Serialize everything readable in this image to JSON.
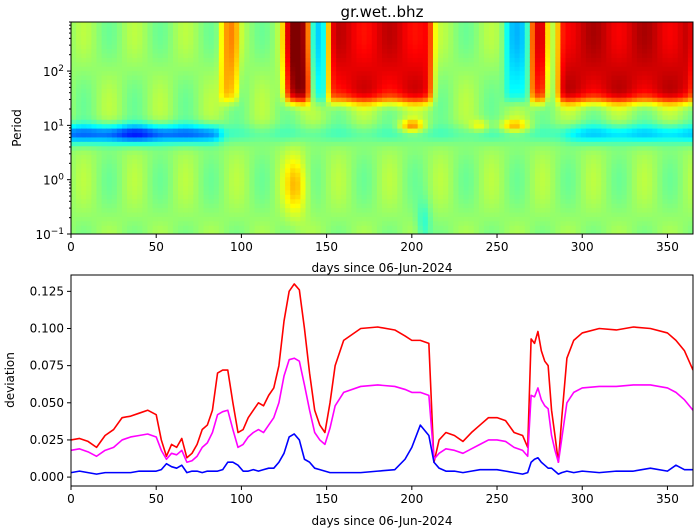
{
  "chart_data": [
    {
      "type": "heatmap",
      "title": "gr.wet..bhz",
      "xlabel": "days since 06-Jun-2024",
      "ylabel": "Period",
      "xlim": [
        0,
        365
      ],
      "ylim": [
        0.1,
        800
      ],
      "yscale": "log",
      "colormap": "jet",
      "xticks": [
        0,
        50,
        100,
        150,
        200,
        250,
        300,
        350
      ],
      "yticks": [
        {
          "value": 0.1,
          "label": "10",
          "exp": "−1"
        },
        {
          "value": 1,
          "label": "10",
          "exp": "0"
        },
        {
          "value": 10,
          "label": "10",
          "exp": "1"
        },
        {
          "value": 100,
          "label": "10",
          "exp": "2"
        }
      ]
    },
    {
      "type": "line",
      "xlabel": "days since 06-Jun-2024",
      "ylabel": "deviation",
      "xlim": [
        0,
        365
      ],
      "ylim": [
        -0.006,
        0.136
      ],
      "xticks": [
        0,
        50,
        100,
        150,
        200,
        250,
        300,
        350
      ],
      "yticks": [
        "0.000",
        "0.025",
        "0.050",
        "0.075",
        "0.100",
        "0.125"
      ],
      "x": [
        0,
        5,
        10,
        15,
        20,
        25,
        30,
        35,
        40,
        45,
        50,
        53,
        56,
        59,
        62,
        65,
        68,
        71,
        74,
        77,
        80,
        83,
        86,
        89,
        92,
        95,
        98,
        101,
        104,
        107,
        110,
        113,
        116,
        119,
        122,
        125,
        128,
        131,
        134,
        137,
        140,
        143,
        146,
        149,
        152,
        155,
        160,
        170,
        180,
        190,
        196,
        200,
        205,
        210,
        213,
        216,
        220,
        225,
        230,
        235,
        240,
        245,
        250,
        255,
        260,
        265,
        268,
        270,
        272,
        274,
        276,
        278,
        280,
        282,
        284,
        286,
        288,
        291,
        295,
        300,
        310,
        320,
        330,
        340,
        350,
        355,
        360,
        365
      ],
      "series": [
        {
          "color": "#ff0000",
          "values": [
            0.025,
            0.026,
            0.024,
            0.02,
            0.028,
            0.032,
            0.04,
            0.041,
            0.043,
            0.045,
            0.042,
            0.025,
            0.014,
            0.022,
            0.02,
            0.026,
            0.013,
            0.016,
            0.022,
            0.032,
            0.035,
            0.045,
            0.07,
            0.072,
            0.072,
            0.05,
            0.03,
            0.032,
            0.04,
            0.045,
            0.05,
            0.048,
            0.055,
            0.06,
            0.075,
            0.105,
            0.125,
            0.13,
            0.126,
            0.1,
            0.07,
            0.045,
            0.035,
            0.03,
            0.05,
            0.075,
            0.092,
            0.1,
            0.101,
            0.099,
            0.095,
            0.092,
            0.092,
            0.09,
            0.01,
            0.025,
            0.03,
            0.028,
            0.024,
            0.03,
            0.035,
            0.04,
            0.04,
            0.038,
            0.03,
            0.028,
            0.02,
            0.093,
            0.09,
            0.098,
            0.085,
            0.078,
            0.075,
            0.045,
            0.028,
            0.01,
            0.04,
            0.08,
            0.092,
            0.097,
            0.1,
            0.099,
            0.101,
            0.1,
            0.097,
            0.092,
            0.085,
            0.072
          ]
        },
        {
          "color": "#ff00ff",
          "values": [
            0.018,
            0.019,
            0.017,
            0.014,
            0.018,
            0.02,
            0.025,
            0.027,
            0.028,
            0.029,
            0.027,
            0.018,
            0.012,
            0.016,
            0.015,
            0.018,
            0.01,
            0.011,
            0.014,
            0.02,
            0.023,
            0.03,
            0.042,
            0.044,
            0.045,
            0.032,
            0.02,
            0.022,
            0.027,
            0.03,
            0.032,
            0.03,
            0.035,
            0.04,
            0.05,
            0.068,
            0.079,
            0.08,
            0.078,
            0.062,
            0.045,
            0.03,
            0.025,
            0.022,
            0.033,
            0.048,
            0.057,
            0.061,
            0.062,
            0.061,
            0.059,
            0.057,
            0.057,
            0.055,
            0.012,
            0.016,
            0.019,
            0.018,
            0.016,
            0.019,
            0.022,
            0.025,
            0.025,
            0.024,
            0.02,
            0.018,
            0.014,
            0.055,
            0.054,
            0.06,
            0.052,
            0.048,
            0.046,
            0.028,
            0.018,
            0.01,
            0.026,
            0.05,
            0.057,
            0.06,
            0.061,
            0.061,
            0.062,
            0.062,
            0.06,
            0.057,
            0.052,
            0.045
          ]
        },
        {
          "color": "#0000ff",
          "values": [
            0.003,
            0.004,
            0.003,
            0.002,
            0.003,
            0.003,
            0.003,
            0.003,
            0.004,
            0.004,
            0.004,
            0.005,
            0.009,
            0.007,
            0.006,
            0.008,
            0.003,
            0.004,
            0.004,
            0.003,
            0.004,
            0.004,
            0.004,
            0.005,
            0.01,
            0.01,
            0.008,
            0.004,
            0.004,
            0.005,
            0.004,
            0.005,
            0.006,
            0.006,
            0.01,
            0.016,
            0.027,
            0.029,
            0.025,
            0.012,
            0.01,
            0.006,
            0.005,
            0.004,
            0.003,
            0.003,
            0.003,
            0.003,
            0.004,
            0.005,
            0.012,
            0.02,
            0.035,
            0.028,
            0.01,
            0.006,
            0.004,
            0.004,
            0.003,
            0.004,
            0.005,
            0.005,
            0.005,
            0.004,
            0.003,
            0.002,
            0.003,
            0.01,
            0.012,
            0.013,
            0.01,
            0.008,
            0.006,
            0.006,
            0.004,
            0.002,
            0.003,
            0.004,
            0.003,
            0.004,
            0.003,
            0.004,
            0.004,
            0.006,
            0.004,
            0.008,
            0.005,
            0.005
          ]
        }
      ]
    }
  ]
}
